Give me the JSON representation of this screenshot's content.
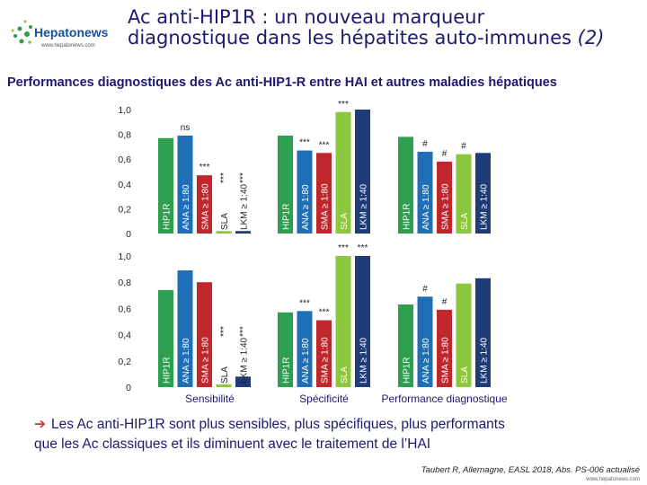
{
  "header": {
    "title_line1": "Ac anti-HIP1R : un nouveau marqueur",
    "title_line2": "diagnostique dans les hépatites auto-immunes",
    "title_suffix": "(2)",
    "logo_text": "Hepatonews",
    "logo_url": "www.hepatonews.com"
  },
  "subtitle": "Performances diagnostiques des Ac anti-HIP1-R entre HAI et autres maladies hépatiques",
  "bullet": {
    "line1": "Les Ac anti-HIP1R sont plus sensibles, plus spécifiques, plus performants",
    "line2": "que les Ac classiques et ils diminuent avec le traitement de l’HAI"
  },
  "reference": "Taubert R, Allernagne, EASL 2018, Abs. PS-006 actualisé",
  "footer_url": "www.hepatonews.com",
  "colors": {
    "HIP1R": "#2e9e4f",
    "ANA": "#1f6fb8",
    "SMA": "#c0272d",
    "SLA": "#8dc63f",
    "LKM": "#1f3c78",
    "title": "#1a1a6e"
  },
  "chart_data": [
    {
      "type": "bar",
      "panel": "top",
      "ylim": [
        0,
        1.0
      ],
      "yticks": [
        "0",
        "0,2",
        "0,4",
        "0,6",
        "0,8",
        "1,0"
      ],
      "groups": [
        {
          "label": "",
          "categories": [
            "HIP1R",
            "ANA ≥ 1:80",
            "SMA ≥ 1:80",
            "SLA",
            "LKM ≥ 1:40"
          ],
          "values": [
            0.77,
            0.79,
            0.47,
            0.02,
            0.02
          ],
          "annotations": [
            "",
            "ns",
            "***",
            "***",
            "***"
          ]
        },
        {
          "label": "",
          "categories": [
            "HIP1R",
            "ANA ≥ 1:80",
            "SMA ≥ 1:80",
            "SLA",
            "LKM ≥ 1:40"
          ],
          "values": [
            0.79,
            0.67,
            0.65,
            0.98,
            1.0
          ],
          "annotations": [
            "",
            "***",
            "***",
            "***",
            ""
          ]
        },
        {
          "label": "",
          "categories": [
            "HIP1R",
            "ANA ≥ 1:80",
            "SMA ≥ 1:80",
            "SLA",
            "LKM ≥ 1:40"
          ],
          "values": [
            0.78,
            0.66,
            0.58,
            0.64,
            0.65
          ],
          "annotations": [
            "",
            "#",
            "#",
            "#",
            ""
          ]
        }
      ]
    },
    {
      "type": "bar",
      "panel": "bottom",
      "ylim": [
        0,
        1.0
      ],
      "yticks": [
        "0",
        "0,2",
        "0,4",
        "0,6",
        "0,8",
        "1,0"
      ],
      "groups": [
        {
          "label": "Sensibilité",
          "categories": [
            "HIP1R",
            "ANA ≥ 1:80",
            "SMA ≥ 1:80",
            "SLA",
            "LKM ≥ 1:40"
          ],
          "values": [
            0.74,
            0.89,
            0.8,
            0.02,
            0.08
          ],
          "annotations": [
            "",
            "",
            "",
            "***",
            "***"
          ]
        },
        {
          "label": "Spécificité",
          "categories": [
            "HIP1R",
            "ANA ≥ 1:80",
            "SMA ≥ 1:80",
            "SLA",
            "LKM ≥ 1:40"
          ],
          "values": [
            0.57,
            0.58,
            0.51,
            1.0,
            1.0
          ],
          "annotations": [
            "",
            "***",
            "***",
            "***",
            "***"
          ]
        },
        {
          "label": "Performance diagnostique",
          "categories": [
            "HIP1R",
            "ANA ≥ 1:80",
            "SMA ≥ 1:80",
            "SLA",
            "LKM ≥ 1:40"
          ],
          "values": [
            0.63,
            0.69,
            0.59,
            0.79,
            0.83
          ],
          "annotations": [
            "",
            "#",
            "#",
            "",
            ""
          ]
        }
      ]
    }
  ]
}
